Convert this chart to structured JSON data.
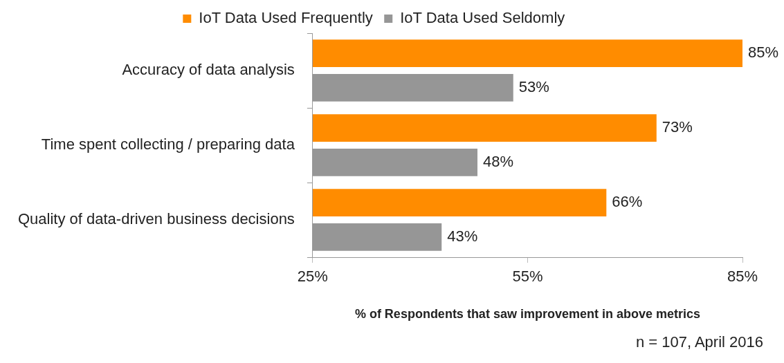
{
  "chart_data": {
    "type": "bar",
    "orientation": "horizontal",
    "categories": [
      "Accuracy of data analysis",
      "Time spent collecting / preparing data",
      "Quality of data-driven business decisions"
    ],
    "series": [
      {
        "name": "IoT Data Used Frequently",
        "color": "#ff8c00",
        "values": [
          85,
          73,
          66
        ],
        "value_labels": [
          "85%",
          "73%",
          "66%"
        ]
      },
      {
        "name": "IoT Data Used Seldomly",
        "color": "#969696",
        "values": [
          53,
          48,
          43
        ],
        "value_labels": [
          "53%",
          "48%",
          "43%"
        ]
      }
    ],
    "xlim": [
      25,
      85
    ],
    "xticks": [
      {
        "value": 25,
        "label": "25%"
      },
      {
        "value": 55,
        "label": "55%"
      },
      {
        "value": 85,
        "label": "85%"
      }
    ],
    "xlabel": "% of Respondents that saw improvement in above metrics",
    "annotations": [
      "n = 107, April 2016"
    ],
    "grid": false,
    "legend": "top"
  }
}
